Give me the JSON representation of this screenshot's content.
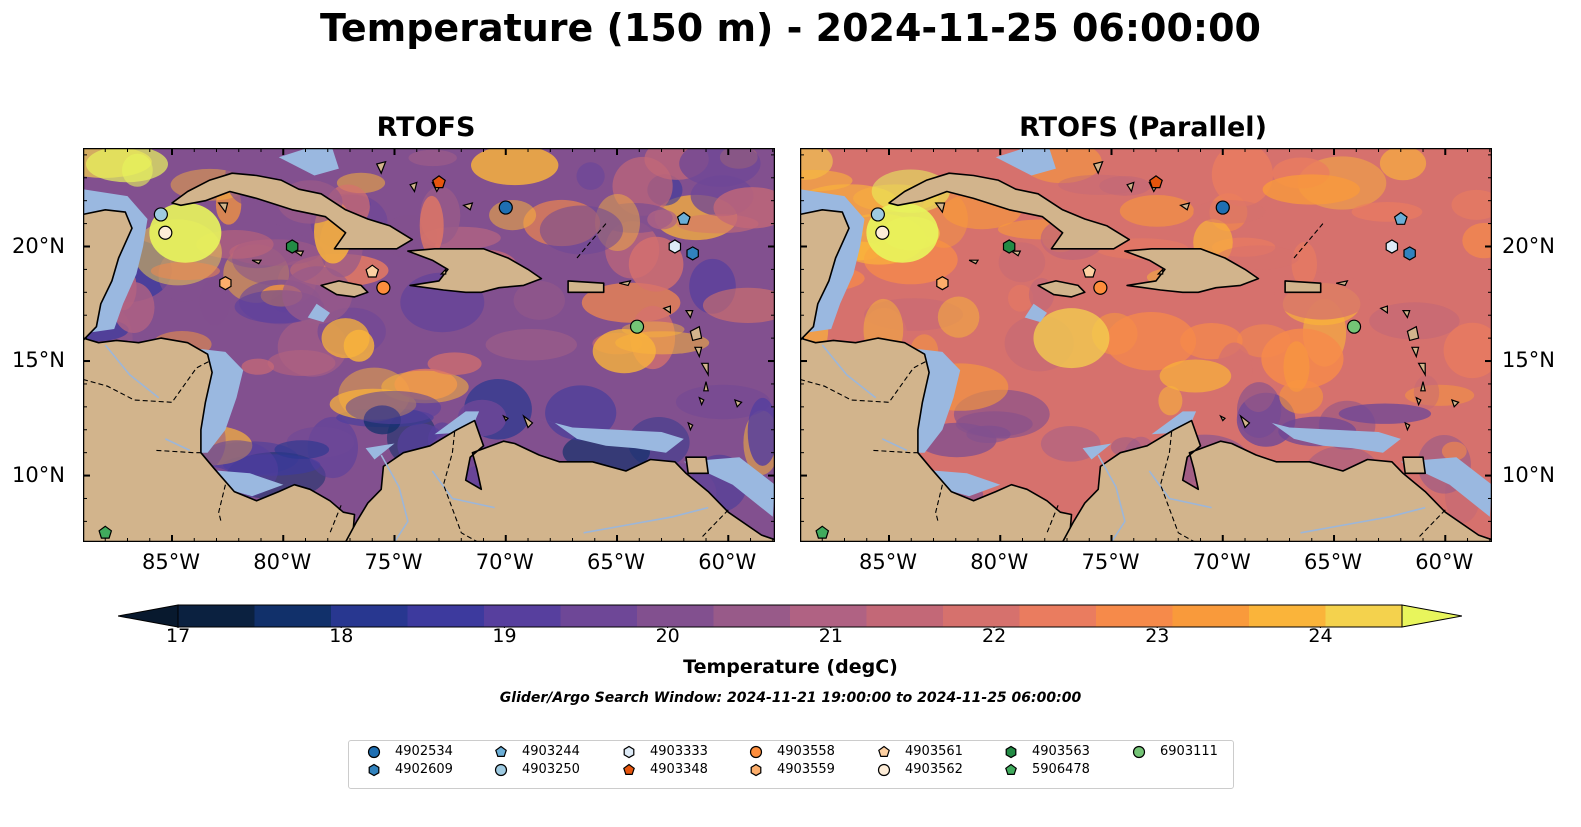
{
  "title": "Temperature (150 m) - 2024-11-25 06:00:00",
  "panels": [
    {
      "id": "left",
      "title": "RTOFS",
      "palette_shift": 0
    },
    {
      "id": "right",
      "title": "RTOFS (Parallel)",
      "palette_shift": 1
    }
  ],
  "map_extent": {
    "lon_min": -89,
    "lon_max": -57.9,
    "lat_min": 7.1,
    "lat_max": 24.3
  },
  "lon_ticks": [
    "85°W",
    "80°W",
    "75°W",
    "70°W",
    "65°W",
    "60°W"
  ],
  "lon_tick_values": [
    -85,
    -80,
    -75,
    -70,
    -65,
    -60
  ],
  "lat_ticks": [
    "20°N",
    "15°N",
    "10°N"
  ],
  "lat_tick_values": [
    20,
    15,
    10
  ],
  "colorbar": {
    "label": "Temperature (degC)",
    "min": 17,
    "max": 24.5,
    "step": 0.5,
    "tick_values": [
      "17",
      "18",
      "19",
      "20",
      "21",
      "22",
      "23",
      "24"
    ],
    "colors": [
      "#0b2140",
      "#11306a",
      "#283790",
      "#3d3a9e",
      "#573f9e",
      "#6e4797",
      "#82508f",
      "#985a89",
      "#b06283",
      "#c36877",
      "#d6716d",
      "#ea7c5f",
      "#f68a4a",
      "#f99a3b",
      "#fab43a",
      "#f4d24d",
      "#e8f55c"
    ],
    "extend_low_color": "#08192e",
    "extend_high_color": "#e8f55c"
  },
  "colors": {
    "land": "#d2b48c",
    "shelf": "#9ab8e0",
    "deep": "#05253a",
    "coast": "#000000",
    "river": "#9cb6d9"
  },
  "search_window": "Glider/Argo Search Window: 2024-11-21 19:00:00 to 2024-11-25 06:00:00",
  "floats": [
    {
      "id": "4902534",
      "lon": -70.0,
      "lat": 21.7,
      "marker": "circle",
      "color": "#1f6fb2"
    },
    {
      "id": "4902609",
      "lon": -61.6,
      "lat": 19.7,
      "marker": "hexagon",
      "color": "#3182bd"
    },
    {
      "id": "4903244",
      "lon": -62.0,
      "lat": 21.2,
      "marker": "pentagon",
      "color": "#6baed6"
    },
    {
      "id": "4903250",
      "lon": -85.5,
      "lat": 21.4,
      "marker": "circle",
      "color": "#9ecae1"
    },
    {
      "id": "4903333",
      "lon": -62.4,
      "lat": 20.0,
      "marker": "hexagon",
      "color": "#deebf7"
    },
    {
      "id": "4903348",
      "lon": -73.0,
      "lat": 22.8,
      "marker": "pentagon",
      "color": "#e6550d"
    },
    {
      "id": "4903558",
      "lon": -75.5,
      "lat": 18.2,
      "marker": "circle",
      "color": "#fd8d3c"
    },
    {
      "id": "4903559",
      "lon": -82.6,
      "lat": 18.4,
      "marker": "hexagon",
      "color": "#fdae6b"
    },
    {
      "id": "4903561",
      "lon": -76.0,
      "lat": 18.9,
      "marker": "pentagon",
      "color": "#fdd0a2"
    },
    {
      "id": "4903562",
      "lon": -85.3,
      "lat": 20.6,
      "marker": "circle",
      "color": "#feedd8"
    },
    {
      "id": "4903563",
      "lon": -79.6,
      "lat": 20.0,
      "marker": "hexagon",
      "color": "#238b45"
    },
    {
      "id": "5906478",
      "lon": -88.0,
      "lat": 7.5,
      "marker": "pentagon",
      "color": "#41ab5d"
    },
    {
      "id": "6903111",
      "lon": -64.1,
      "lat": 16.5,
      "marker": "circle",
      "color": "#74c476"
    }
  ]
}
